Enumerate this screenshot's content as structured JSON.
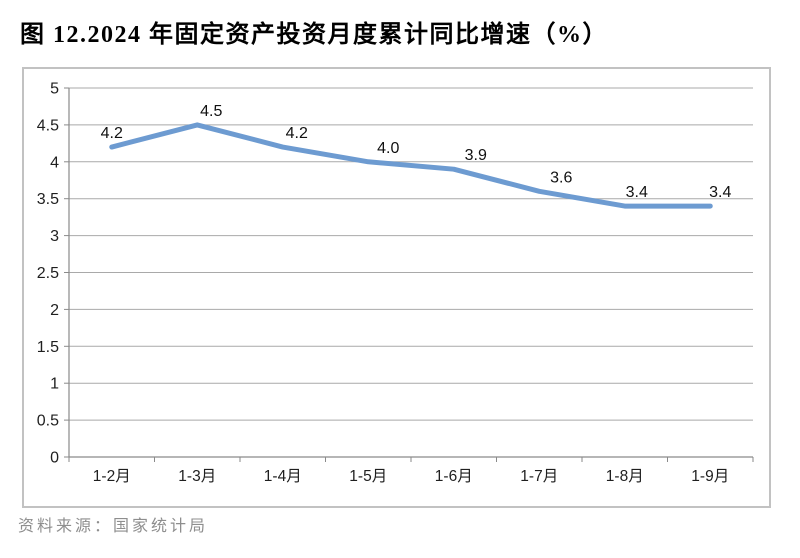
{
  "figure": {
    "title": "图 12.2024 年固定资产投资月度累计同比增速（%）",
    "source": "资料来源：国家统计局"
  },
  "chart_data": {
    "type": "line",
    "title": "图 12.2024 年固定资产投资月度累计同比增速（%）",
    "categories": [
      "1-2月",
      "1-3月",
      "1-4月",
      "1-5月",
      "1-6月",
      "1-7月",
      "1-8月",
      "1-9月"
    ],
    "values": [
      4.2,
      4.5,
      4.2,
      4.0,
      3.9,
      3.6,
      3.4,
      3.4
    ],
    "data_labels": [
      "4.2",
      "4.5",
      "4.2",
      "4.0",
      "3.9",
      "3.6",
      "3.4",
      "3.4"
    ],
    "xlabel": "",
    "ylabel": "",
    "ylim": [
      0,
      5
    ],
    "ytick_step": 0.5,
    "yticks": [
      "5",
      "4.5",
      "4",
      "3.5",
      "3",
      "2.5",
      "2",
      "1.5",
      "1",
      "0.5",
      "0"
    ],
    "grid": true,
    "legend": "none",
    "line_color": "#6d9bd1",
    "source": "资料来源：国家统计局"
  }
}
